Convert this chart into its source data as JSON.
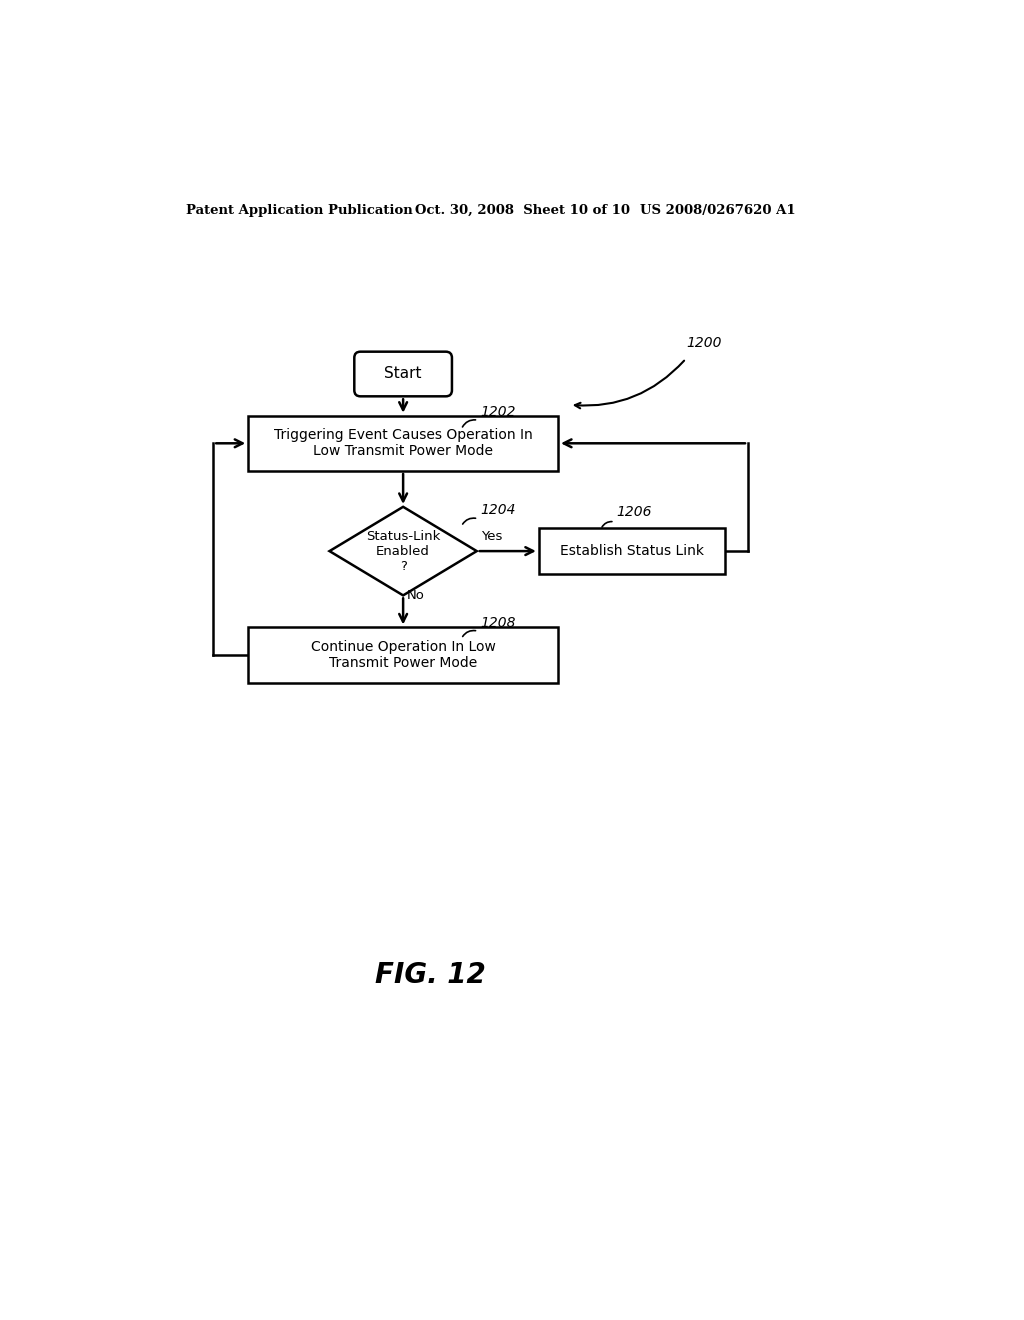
{
  "bg_color": "#ffffff",
  "header_left": "Patent Application Publication",
  "header_mid": "Oct. 30, 2008  Sheet 10 of 10",
  "header_right": "US 2008/0267620 A1",
  "fig_label": "FIG. 12",
  "start_text": "Start",
  "box1202_text": "Triggering Event Causes Operation In\nLow Transmit Power Mode",
  "label1202": "1202",
  "diamond_text": "Status-Link\nEnabled\n?",
  "label1204": "1204",
  "box1206_text": "Establish Status Link",
  "label1206": "1206",
  "box1208_text": "Continue Operation In Low\nTransmit Power Mode",
  "label1208": "1208",
  "label1200": "1200",
  "yes_label": "Yes",
  "no_label": "No",
  "lw": 1.8
}
